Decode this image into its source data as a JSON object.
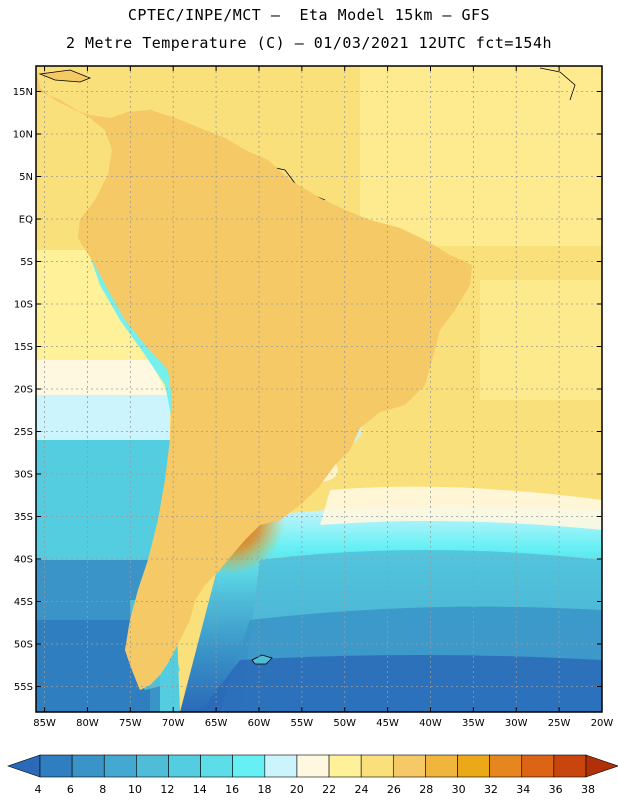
{
  "header": {
    "title_line1": "CPTEC/INPE/MCT –  Eta Model 15km – GFS",
    "title_line2": "2 Metre Temperature (C) – 01/03/2021 12UTC fct=154h"
  },
  "map": {
    "lat_range": [
      -58,
      18
    ],
    "lon_range": [
      -86,
      -20
    ],
    "lat_ticks": [
      {
        "value": 15,
        "label": "15N"
      },
      {
        "value": 10,
        "label": "10N"
      },
      {
        "value": 5,
        "label": "5N"
      },
      {
        "value": 0,
        "label": "EQ"
      },
      {
        "value": -5,
        "label": "5S"
      },
      {
        "value": -10,
        "label": "10S"
      },
      {
        "value": -15,
        "label": "15S"
      },
      {
        "value": -20,
        "label": "20S"
      },
      {
        "value": -25,
        "label": "25S"
      },
      {
        "value": -30,
        "label": "30S"
      },
      {
        "value": -35,
        "label": "35S"
      },
      {
        "value": -40,
        "label": "40S"
      },
      {
        "value": -45,
        "label": "45S"
      },
      {
        "value": -50,
        "label": "50S"
      },
      {
        "value": -55,
        "label": "55S"
      }
    ],
    "lon_ticks": [
      {
        "value": -85,
        "label": "85W"
      },
      {
        "value": -80,
        "label": "80W"
      },
      {
        "value": -75,
        "label": "75W"
      },
      {
        "value": -70,
        "label": "70W"
      },
      {
        "value": -65,
        "label": "65W"
      },
      {
        "value": -60,
        "label": "60W"
      },
      {
        "value": -55,
        "label": "55W"
      },
      {
        "value": -50,
        "label": "50W"
      },
      {
        "value": -45,
        "label": "45W"
      },
      {
        "value": -40,
        "label": "40W"
      },
      {
        "value": -35,
        "label": "35W"
      },
      {
        "value": -30,
        "label": "30W"
      },
      {
        "value": -25,
        "label": "25W"
      },
      {
        "value": -20,
        "label": "20W"
      }
    ]
  },
  "colorbar": {
    "labels": [
      "4",
      "6",
      "8",
      "10",
      "12",
      "14",
      "16",
      "18",
      "20",
      "22",
      "24",
      "26",
      "28",
      "30",
      "32",
      "34",
      "36",
      "38"
    ],
    "colors": [
      "#2a6ab8",
      "#2f7fc0",
      "#3a94c8",
      "#45a8d0",
      "#4fbcd8",
      "#55cde0",
      "#5ddde8",
      "#66f0f4",
      "#ccf4fc",
      "#fff8e0",
      "#fff09a",
      "#fae07a",
      "#f5c966",
      "#f0b53c",
      "#eba818",
      "#e5861e",
      "#dd6414",
      "#c8460e",
      "#b03008"
    ]
  }
}
